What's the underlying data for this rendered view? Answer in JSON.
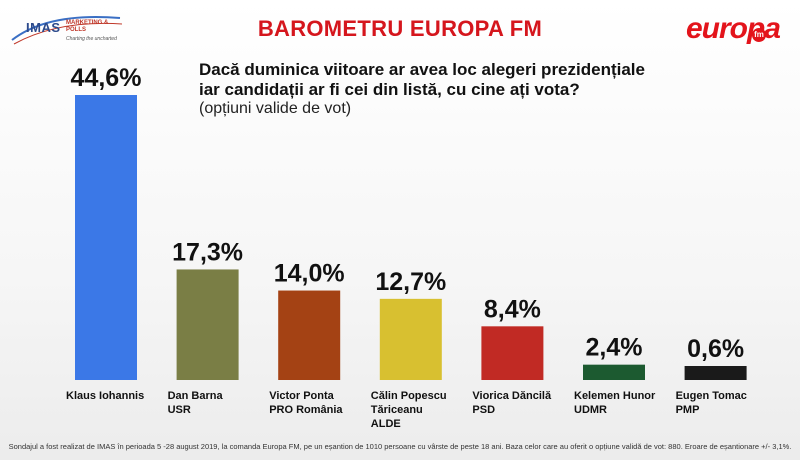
{
  "header": {
    "title": "BAROMETRU EUROPA FM",
    "imas_logo": "IMAS",
    "imas_logo_sub": "MARKETING & POLLS",
    "imas_tagline": "Charting the uncharted",
    "europa_logo": "europa",
    "europa_logo_fm": "fm"
  },
  "question": {
    "text": "Dacă duminica viitoare ar avea loc alegeri prezidențiale iar candidații ar fi cei din listă, cu cine ați vota?",
    "note": "(opțiuni valide de vot)"
  },
  "footnote": "Sondajul a fost realizat de IMAS în perioada 5 -28 august 2019, la comanda Europa FM, pe un eșantion de 1010 persoane cu vârste de peste 18 ani. Baza celor care au oferit o opțiune validă de vot: 880. Eroare de eșantionare +/- 3,1%.",
  "chart_data": {
    "type": "bar",
    "title": "BAROMETRU EUROPA FM",
    "categories": [
      [
        "Klaus Iohannis"
      ],
      [
        "Dan Barna",
        "USR"
      ],
      [
        "Victor Ponta",
        "PRO România"
      ],
      [
        "Călin Popescu",
        "Tăriceanu",
        "ALDE"
      ],
      [
        "Viorica Dăncilă",
        "PSD"
      ],
      [
        "Kelemen Hunor",
        "UDMR"
      ],
      [
        "Eugen Tomac",
        "PMP"
      ]
    ],
    "values": [
      44.6,
      17.3,
      14.0,
      12.7,
      8.4,
      2.4,
      0.6
    ],
    "value_labels": [
      "44,6%",
      "17,3%",
      "14,0%",
      "12,7%",
      "8,4%",
      "2,4%",
      "0,6%"
    ],
    "colors": [
      "#3b78e7",
      "#7a7e45",
      "#a44214",
      "#d8c030",
      "#c12a24",
      "#1c5a30",
      "#1a1a1a"
    ],
    "ylim": [
      0,
      44.6
    ],
    "grid": false,
    "legend": "none"
  }
}
